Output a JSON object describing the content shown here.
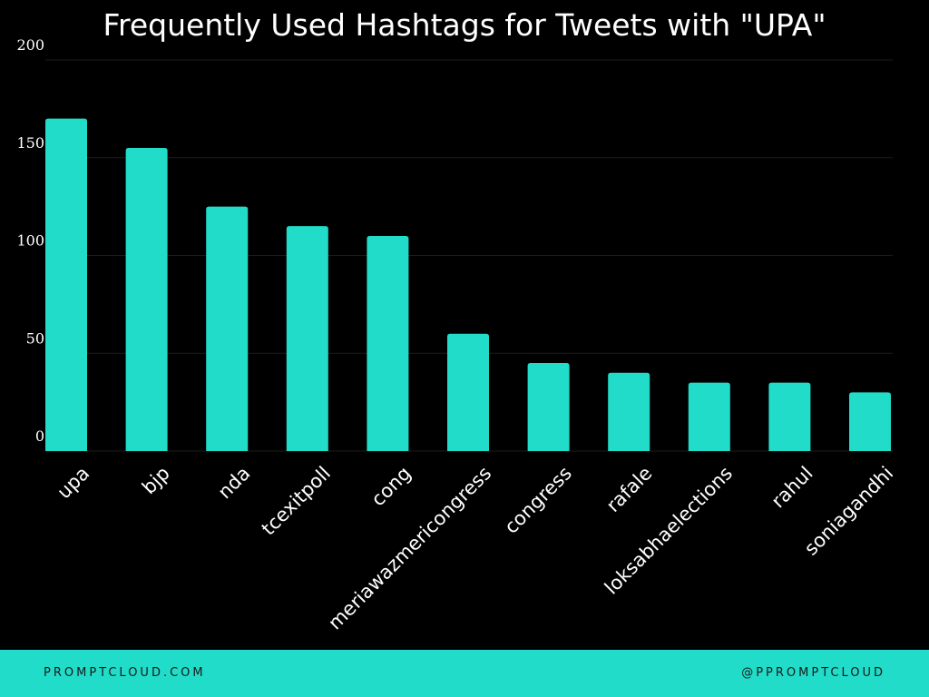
{
  "chart_data": {
    "type": "bar",
    "title": "Frequently Used Hashtags for Tweets with \"UPA\"",
    "xlabel": "",
    "ylabel": "",
    "ylim": [
      0,
      200
    ],
    "yticks": [
      0,
      50,
      100,
      150,
      200
    ],
    "grid": true,
    "bar_color": "#20dcc8",
    "categories": [
      "upa",
      "bjp",
      "nda",
      "tcexitpoll",
      "cong",
      "meriawazmericongress",
      "congress",
      "rafale",
      "loksabhaelections",
      "rahul",
      "soniagandhi"
    ],
    "values": [
      170,
      155,
      125,
      115,
      110,
      60,
      45,
      40,
      35,
      35,
      30
    ]
  },
  "footer": {
    "left": "PROMPTCLOUD.COM",
    "right": "@PPROMPTCLOUD",
    "background": "#20dcc8"
  }
}
